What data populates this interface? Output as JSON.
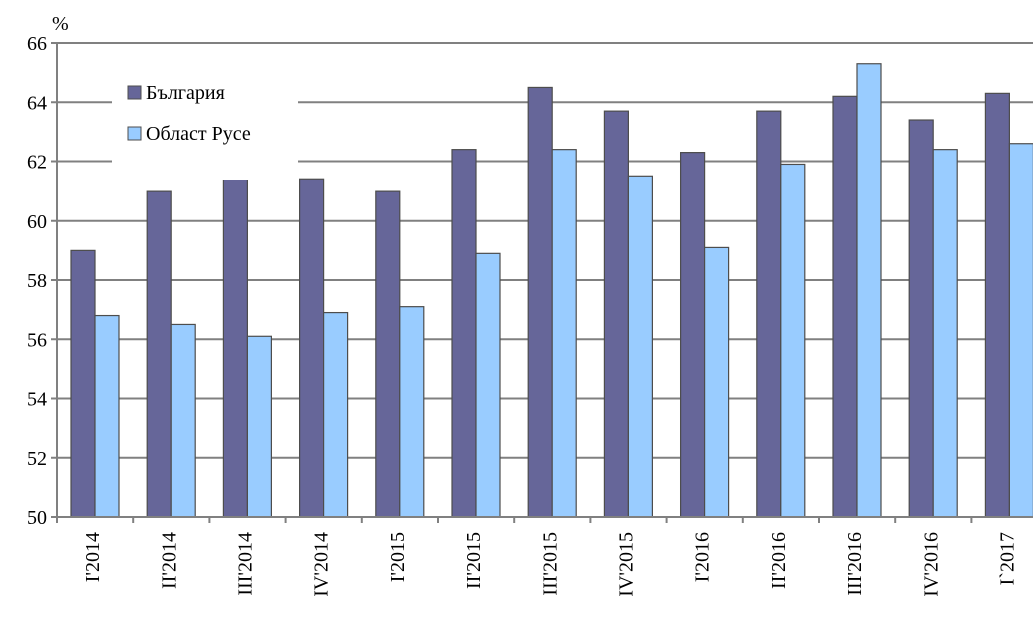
{
  "chart_data": {
    "type": "bar",
    "ylabel": "%",
    "ylim": [
      50,
      66
    ],
    "yticks": [
      50,
      52,
      54,
      56,
      58,
      60,
      62,
      64,
      66
    ],
    "grid": true,
    "legend_position": "top-left",
    "categories": [
      "I'2014",
      "II'2014",
      "III'2014",
      "IV'2014",
      "I'2015",
      "II'2015",
      "III'2015",
      "IV'2015",
      "I'2016",
      "II'2016",
      "III'2016",
      "IV'2016",
      "I`2017"
    ],
    "series": [
      {
        "name": "България",
        "color": "#666699",
        "values": [
          59.0,
          61.0,
          62.3,
          61.4,
          61.0,
          62.4,
          64.5,
          63.7,
          62.3,
          63.7,
          64.2,
          63.4,
          64.3
        ]
      },
      {
        "name": "Област Русе",
        "color": "#99ccff",
        "values": [
          56.8,
          56.5,
          56.1,
          56.9,
          57.1,
          58.9,
          62.4,
          61.5,
          59.1,
          61.9,
          65.3,
          62.4,
          62.6
        ]
      }
    ]
  }
}
